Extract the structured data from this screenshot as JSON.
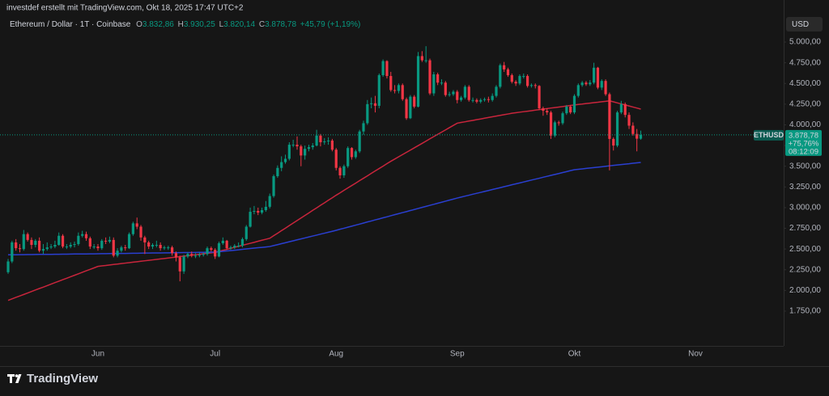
{
  "chart_data": {
    "type": "candlestick",
    "attribution": "investdef erstellt mit TradingView.com, Okt 18, 2025 17:47 UTC+2",
    "title": "Ethereum / Dollar · 1T · Coinbase",
    "ohlc_header": [
      {
        "key": "O",
        "text": "3.832,86"
      },
      {
        "key": "H",
        "text": "3.930,25"
      },
      {
        "key": "L",
        "text": "3.820,14"
      },
      {
        "key": "C",
        "text": "3.878,78"
      }
    ],
    "change_text": "+45,79 (+1,19%)",
    "currency": "USD",
    "brand": "TradingView",
    "price_label": {
      "symbol": "ETHUSD",
      "price": "3.878,78",
      "change": "+75,76%",
      "countdown": "08:12:09"
    },
    "up_color": "#089981",
    "down_color": "#f23645",
    "grid": false,
    "ylim": [
      1330,
      5508
    ],
    "yticks": [
      {
        "value": 5000,
        "label": "5.000,00"
      },
      {
        "value": 4750,
        "label": "4.750,00"
      },
      {
        "value": 4500,
        "label": "4.500,00"
      },
      {
        "value": 4250,
        "label": "4.250,00"
      },
      {
        "value": 4000,
        "label": "4.000,00"
      },
      {
        "value": 3750,
        "label": "3.750,00"
      },
      {
        "value": 3500,
        "label": "3.500,00"
      },
      {
        "value": 3250,
        "label": "3.250,00"
      },
      {
        "value": 3000,
        "label": "3.000,00"
      },
      {
        "value": 2750,
        "label": "2.750,00"
      },
      {
        "value": 2500,
        "label": "2.500,00"
      },
      {
        "value": 2250,
        "label": "2.250,00"
      },
      {
        "value": 2000,
        "label": "2.000,00"
      },
      {
        "value": 1750,
        "label": "1.750,00"
      }
    ],
    "categories": [
      null,
      null,
      null,
      null,
      null,
      null,
      null,
      null,
      null,
      null,
      null,
      null,
      null,
      null,
      null,
      null,
      null,
      null,
      null,
      null,
      null,
      null,
      null,
      "Jun",
      null,
      null,
      null,
      null,
      null,
      null,
      null,
      null,
      null,
      null,
      null,
      null,
      null,
      null,
      null,
      null,
      null,
      null,
      null,
      null,
      null,
      null,
      null,
      null,
      null,
      null,
      null,
      null,
      null,
      "Jul",
      null,
      null,
      null,
      null,
      null,
      null,
      null,
      null,
      null,
      null,
      null,
      null,
      null,
      null,
      null,
      null,
      null,
      null,
      null,
      null,
      null,
      null,
      null,
      null,
      null,
      null,
      null,
      null,
      null,
      null,
      "Aug",
      null,
      null,
      null,
      null,
      null,
      null,
      null,
      null,
      null,
      null,
      null,
      null,
      null,
      null,
      null,
      null,
      null,
      null,
      null,
      null,
      null,
      null,
      null,
      null,
      null,
      null,
      null,
      null,
      null,
      null,
      "Sep",
      null,
      null,
      null,
      null,
      null,
      null,
      null,
      null,
      null,
      null,
      null,
      null,
      null,
      null,
      null,
      null,
      null,
      null,
      null,
      null,
      null,
      null,
      null,
      null,
      null,
      null,
      null,
      null,
      null,
      "Okt",
      null,
      null,
      null,
      null,
      null,
      null,
      null,
      null,
      null,
      null,
      null,
      null,
      null,
      null,
      null,
      null,
      null,
      null,
      null,
      null,
      null,
      null,
      null,
      null,
      null,
      null,
      null,
      null,
      null,
      null,
      "Nov"
    ],
    "open": [
      2220,
      2350,
      2580,
      2510,
      2500,
      2680,
      2610,
      2550,
      2600,
      2480,
      2500,
      2520,
      2530,
      2550,
      2660,
      2530,
      2530,
      2550,
      2560,
      2660,
      2680,
      2630,
      2530,
      2530,
      2510,
      2600,
      2590,
      2610,
      2420,
      2480,
      2520,
      2510,
      2680,
      2810,
      2770,
      2640,
      2580,
      2530,
      2550,
      2550,
      2510,
      2520,
      2520,
      2450,
      2400,
      2230,
      2410,
      2440,
      2420,
      2420,
      2430,
      2440,
      2510,
      2490,
      2410,
      2570,
      2600,
      2510,
      2520,
      2540,
      2540,
      2620,
      2770,
      2950,
      2960,
      2940,
      2970,
      3010,
      3140,
      3380,
      3480,
      3550,
      3590,
      3760,
      3760,
      3740,
      3630,
      3710,
      3730,
      3750,
      3870,
      3790,
      3800,
      3810,
      3700,
      3480,
      3390,
      3500,
      3720,
      3610,
      3680,
      3920,
      4020,
      4250,
      4260,
      4230,
      4600,
      4770,
      4590,
      4420,
      4410,
      4480,
      4310,
      4080,
      4340,
      4220,
      4830,
      4780,
      4780,
      4380,
      4610,
      4510,
      4510,
      4360,
      4370,
      4400,
      4300,
      4330,
      4460,
      4300,
      4300,
      4280,
      4300,
      4310,
      4300,
      4350,
      4460,
      4720,
      4670,
      4600,
      4520,
      4500,
      4590,
      4590,
      4470,
      4480,
      4470,
      4200,
      4170,
      4150,
      3870,
      4030,
      4020,
      4140,
      4220,
      4150,
      4350,
      4480,
      4510,
      4490,
      4510,
      4690,
      4450,
      4530,
      4370,
      3830,
      3750,
      4150,
      4250,
      4120,
      3990,
      3890,
      3832.86,
      null,
      null,
      null,
      null,
      null,
      null,
      null,
      null,
      null,
      null,
      null,
      null,
      null,
      null
    ],
    "high": [
      2380,
      2600,
      2620,
      2560,
      2730,
      2700,
      2640,
      2620,
      2640,
      2560,
      2580,
      2560,
      2600,
      2700,
      2680,
      2560,
      2580,
      2590,
      2700,
      2720,
      2710,
      2650,
      2560,
      2560,
      2620,
      2640,
      2650,
      2640,
      2510,
      2540,
      2550,
      2700,
      2830,
      2880,
      2790,
      2660,
      2600,
      2570,
      2600,
      2580,
      2540,
      2540,
      2540,
      2470,
      2420,
      2430,
      2460,
      2470,
      2450,
      2460,
      2460,
      2530,
      2530,
      2510,
      2590,
      2640,
      2610,
      2540,
      2560,
      2580,
      2640,
      2790,
      3000,
      3020,
      3000,
      3000,
      3080,
      3170,
      3400,
      3510,
      3620,
      3640,
      3790,
      3820,
      3860,
      3760,
      3750,
      3760,
      3780,
      3940,
      3890,
      3840,
      3850,
      3830,
      3720,
      3500,
      3520,
      3740,
      3730,
      3700,
      3940,
      4050,
      4300,
      4330,
      4350,
      4620,
      4790,
      4780,
      4640,
      4480,
      4500,
      4500,
      4330,
      4360,
      4360,
      4880,
      4890,
      4950,
      4800,
      4640,
      4630,
      4550,
      4530,
      4400,
      4420,
      4420,
      4350,
      4480,
      4480,
      4330,
      4320,
      4320,
      4330,
      4340,
      4380,
      4480,
      4740,
      4760,
      4690,
      4620,
      4540,
      4610,
      4620,
      4610,
      4500,
      4500,
      4480,
      4220,
      4200,
      4170,
      4050,
      4050,
      4160,
      4240,
      4240,
      4370,
      4500,
      4530,
      4530,
      4540,
      4750,
      4700,
      4550,
      4550,
      4390,
      3850,
      4170,
      4290,
      4270,
      4150,
      4030,
      3950,
      3930.25,
      null,
      null,
      null,
      null,
      null,
      null,
      null,
      null,
      null,
      null,
      null,
      null,
      null,
      null
    ],
    "low": [
      2200,
      2330,
      2480,
      2460,
      2480,
      2590,
      2500,
      2520,
      2460,
      2440,
      2480,
      2500,
      2510,
      2540,
      2510,
      2500,
      2510,
      2520,
      2540,
      2640,
      2600,
      2500,
      2500,
      2480,
      2490,
      2560,
      2570,
      2400,
      2400,
      2460,
      2480,
      2500,
      2660,
      2740,
      2600,
      2440,
      2500,
      2500,
      2520,
      2480,
      2490,
      2490,
      2420,
      2350,
      2110,
      2200,
      2390,
      2400,
      2390,
      2400,
      2410,
      2420,
      2470,
      2380,
      2400,
      2550,
      2490,
      2490,
      2500,
      2520,
      2520,
      2600,
      2760,
      2920,
      2910,
      2920,
      2950,
      2990,
      3120,
      3360,
      3440,
      3530,
      3570,
      3730,
      3700,
      3500,
      3580,
      3680,
      3700,
      3740,
      3740,
      3760,
      3760,
      3680,
      3450,
      3350,
      3360,
      3480,
      3580,
      3590,
      3660,
      3880,
      4000,
      4200,
      4150,
      4200,
      4580,
      4560,
      4400,
      4380,
      4380,
      4290,
      4060,
      4070,
      4200,
      4210,
      4760,
      4750,
      4360,
      4350,
      4480,
      4480,
      4340,
      4340,
      4350,
      4260,
      4280,
      4310,
      4280,
      4270,
      4260,
      4260,
      4280,
      4270,
      4280,
      4330,
      4440,
      4640,
      4580,
      4500,
      4470,
      4480,
      4560,
      4450,
      4450,
      4440,
      4180,
      4110,
      4120,
      3830,
      3850,
      3990,
      4000,
      4120,
      4130,
      4130,
      4330,
      4460,
      4470,
      4470,
      4490,
      4430,
      4420,
      4350,
      3450,
      3690,
      3730,
      4130,
      4090,
      3950,
      3870,
      3680,
      3820.14,
      null,
      null,
      null,
      null,
      null,
      null,
      null,
      null,
      null,
      null,
      null,
      null,
      null,
      null
    ],
    "close": [
      2350,
      2580,
      2510,
      2500,
      2680,
      2610,
      2550,
      2600,
      2480,
      2500,
      2520,
      2530,
      2550,
      2660,
      2530,
      2530,
      2550,
      2560,
      2660,
      2680,
      2630,
      2530,
      2530,
      2510,
      2600,
      2590,
      2610,
      2420,
      2480,
      2520,
      2510,
      2680,
      2810,
      2770,
      2640,
      2580,
      2530,
      2550,
      2550,
      2510,
      2520,
      2520,
      2450,
      2400,
      2230,
      2410,
      2440,
      2420,
      2420,
      2430,
      2440,
      2510,
      2490,
      2410,
      2570,
      2600,
      2510,
      2520,
      2540,
      2540,
      2620,
      2770,
      2950,
      2960,
      2940,
      2970,
      3010,
      3140,
      3380,
      3480,
      3550,
      3590,
      3760,
      3760,
      3740,
      3630,
      3710,
      3730,
      3750,
      3870,
      3790,
      3800,
      3810,
      3700,
      3480,
      3390,
      3500,
      3720,
      3610,
      3680,
      3920,
      4020,
      4250,
      4260,
      4230,
      4600,
      4770,
      4590,
      4420,
      4410,
      4480,
      4310,
      4080,
      4340,
      4220,
      4830,
      4780,
      4780,
      4380,
      4610,
      4510,
      4510,
      4360,
      4370,
      4400,
      4300,
      4330,
      4460,
      4300,
      4300,
      4280,
      4300,
      4310,
      4300,
      4350,
      4460,
      4720,
      4670,
      4600,
      4520,
      4500,
      4590,
      4590,
      4470,
      4480,
      4470,
      4200,
      4170,
      4150,
      3870,
      4030,
      4020,
      4140,
      4220,
      4150,
      4350,
      4480,
      4510,
      4490,
      4510,
      4690,
      4450,
      4530,
      4370,
      3830,
      3750,
      4150,
      4250,
      4120,
      3990,
      3890,
      3832.86,
      3878.78,
      null,
      null,
      null,
      null,
      null,
      null,
      null,
      null,
      null,
      null,
      null,
      null,
      null,
      null
    ],
    "moving_averages": [
      {
        "color": "#c9253c",
        "values": [
          1880,
          1898,
          1916,
          1933,
          1951,
          1969,
          1987,
          2005,
          2023,
          2040,
          2058,
          2076,
          2094,
          2112,
          2130,
          2147,
          2165,
          2183,
          2201,
          2219,
          2237,
          2254,
          2272,
          2290,
          2296,
          2301,
          2307,
          2313,
          2318,
          2324,
          2330,
          2335,
          2341,
          2347,
          2352,
          2358,
          2364,
          2369,
          2375,
          2381,
          2386,
          2392,
          2398,
          2403,
          2409,
          2415,
          2420,
          2426,
          2432,
          2437,
          2443,
          2449,
          2454,
          2460,
          2472,
          2484,
          2496,
          2509,
          2521,
          2533,
          2545,
          2557,
          2569,
          2581,
          2594,
          2606,
          2618,
          2630,
          2661,
          2691,
          2722,
          2752,
          2783,
          2814,
          2844,
          2875,
          2905,
          2936,
          2967,
          2997,
          3028,
          3058,
          3089,
          3119,
          3150,
          3179,
          3209,
          3238,
          3267,
          3296,
          3326,
          3355,
          3384,
          3414,
          3443,
          3472,
          3501,
          3531,
          3560,
          3587,
          3614,
          3641,
          3668,
          3695,
          3722,
          3749,
          3776,
          3803,
          3831,
          3858,
          3885,
          3912,
          3939,
          3966,
          3993,
          4020,
          4029,
          4037,
          4046,
          4054,
          4063,
          4071,
          4080,
          4089,
          4097,
          4106,
          4114,
          4123,
          4131,
          4140,
          4146,
          4153,
          4159,
          4165,
          4171,
          4178,
          4184,
          4190,
          4196,
          4203,
          4209,
          4215,
          4221,
          4228,
          4234,
          4240,
          4246,
          4251,
          4257,
          4262,
          4268,
          4273,
          4279,
          4284,
          4290,
          4278,
          4265,
          4253,
          4240,
          4228,
          4215,
          4203,
          4190,
          null,
          null,
          null,
          null,
          null,
          null,
          null,
          null,
          null,
          null,
          null,
          null,
          null,
          null
        ]
      },
      {
        "color": "#2a3fd1",
        "values": [
          2430,
          2431,
          2431,
          2432,
          2432,
          2433,
          2433,
          2434,
          2435,
          2435,
          2436,
          2436,
          2437,
          2437,
          2438,
          2438,
          2439,
          2440,
          2440,
          2441,
          2441,
          2442,
          2442,
          2443,
          2444,
          2444,
          2445,
          2446,
          2446,
          2447,
          2447,
          2448,
          2449,
          2449,
          2450,
          2451,
          2451,
          2452,
          2453,
          2453,
          2454,
          2454,
          2455,
          2456,
          2456,
          2457,
          2458,
          2458,
          2459,
          2460,
          2460,
          2461,
          2462,
          2462,
          2467,
          2472,
          2477,
          2481,
          2486,
          2491,
          2496,
          2501,
          2506,
          2511,
          2516,
          2520,
          2525,
          2530,
          2542,
          2553,
          2565,
          2576,
          2588,
          2599,
          2611,
          2622,
          2634,
          2645,
          2657,
          2668,
          2680,
          2691,
          2703,
          2714,
          2726,
          2739,
          2751,
          2764,
          2776,
          2789,
          2801,
          2814,
          2827,
          2839,
          2852,
          2864,
          2877,
          2889,
          2902,
          2915,
          2927,
          2940,
          2952,
          2965,
          2977,
          2990,
          3003,
          3015,
          3028,
          3040,
          3053,
          3065,
          3078,
          3091,
          3103,
          3116,
          3127,
          3139,
          3150,
          3162,
          3173,
          3184,
          3196,
          3207,
          3219,
          3230,
          3241,
          3253,
          3264,
          3276,
          3287,
          3298,
          3310,
          3321,
          3333,
          3344,
          3355,
          3367,
          3378,
          3390,
          3401,
          3412,
          3424,
          3435,
          3447,
          3458,
          3463,
          3468,
          3474,
          3479,
          3484,
          3489,
          3494,
          3499,
          3505,
          3510,
          3515,
          3520,
          3525,
          3530,
          3536,
          3541,
          3546,
          null,
          null,
          null,
          null,
          null,
          null,
          null,
          null,
          null,
          null,
          null,
          null,
          null,
          null
        ]
      }
    ]
  }
}
